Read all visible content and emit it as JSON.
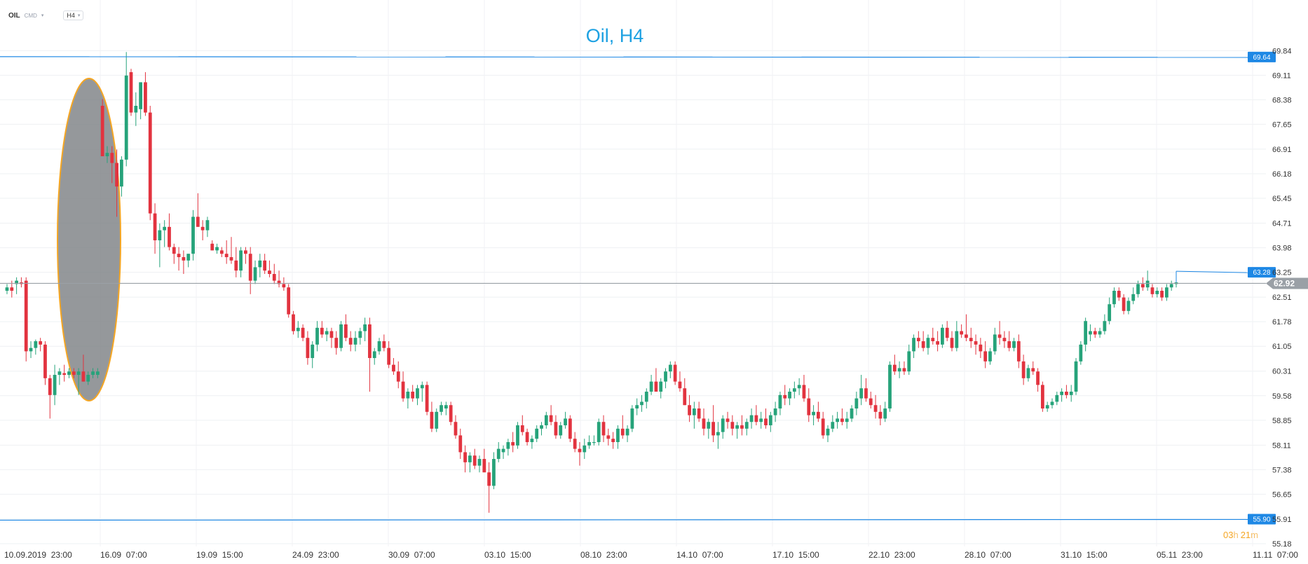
{
  "toolbar": {
    "symbol": "OIL",
    "symbol_type": "CMD",
    "timeframe": "H4",
    "caret": "▾"
  },
  "colors": {
    "bull": "#26a37a",
    "bear": "#e2333f",
    "hline": "#1e88e5",
    "current": "#9aa0a6",
    "ellipse_fill": "#7e8185",
    "ellipse_stroke": "#f5a623",
    "countdown": "#f5a623",
    "countdown_num": "#f5a623"
  },
  "chart_data": {
    "type": "candlestick",
    "title": "Oil, H4",
    "ylim": [
      55.18,
      70.2
    ],
    "y_ticks": [
      "69.84",
      "69.11",
      "68.38",
      "67.65",
      "66.91",
      "66.18",
      "65.45",
      "64.71",
      "63.98",
      "63.25",
      "62.51",
      "61.78",
      "61.05",
      "60.31",
      "59.58",
      "58.85",
      "58.11",
      "57.38",
      "56.65",
      "55.91",
      "55.18"
    ],
    "x_tick_labels": [
      "10.09.2019  23:00",
      "16.09  07:00",
      "19.09  15:00",
      "24.09  23:00",
      "30.09  07:00",
      "03.10  15:00",
      "08.10  23:00",
      "14.10  07:00",
      "17.10  15:00",
      "22.10  23:00",
      "28.10  07:00",
      "31.10  15:00",
      "05.11  23:00",
      "11.11  07:00"
    ],
    "ohlc": [
      [
        62.7,
        62.9,
        62.6,
        62.8
      ],
      [
        62.8,
        63.0,
        62.5,
        62.7
      ],
      [
        62.9,
        63.1,
        62.6,
        63.0
      ],
      [
        62.95,
        63.1,
        62.8,
        62.9
      ],
      [
        63.0,
        63.1,
        60.6,
        60.9
      ],
      [
        60.9,
        61.2,
        60.7,
        61.0
      ],
      [
        61.0,
        61.25,
        60.8,
        61.2
      ],
      [
        61.2,
        61.3,
        60.9,
        61.1
      ],
      [
        61.1,
        61.2,
        59.9,
        60.1
      ],
      [
        60.1,
        60.2,
        58.9,
        59.6
      ],
      [
        59.6,
        60.5,
        59.3,
        60.2
      ],
      [
        60.2,
        60.4,
        59.9,
        60.3
      ],
      [
        60.25,
        60.5,
        60.0,
        60.2
      ],
      [
        60.2,
        60.4,
        60.1,
        60.3
      ],
      [
        60.3,
        60.4,
        60.1,
        60.2
      ],
      [
        60.2,
        60.4,
        59.6,
        60.3
      ],
      [
        60.3,
        60.8,
        60.0,
        60.0
      ],
      [
        60.0,
        60.3,
        59.9,
        60.2
      ],
      [
        60.2,
        60.4,
        60.1,
        60.3
      ],
      [
        60.2,
        60.4,
        60.1,
        60.3
      ],
      [
        68.2,
        68.4,
        66.7,
        66.7
      ],
      [
        66.7,
        67.0,
        66.5,
        66.8
      ],
      [
        66.8,
        67.0,
        65.9,
        66.5
      ],
      [
        66.5,
        66.9,
        64.9,
        65.8
      ],
      [
        65.8,
        66.7,
        65.5,
        66.6
      ],
      [
        66.6,
        69.8,
        66.4,
        69.1
      ],
      [
        69.2,
        69.3,
        67.9,
        68.0
      ],
      [
        68.0,
        68.6,
        67.6,
        68.2
      ],
      [
        68.1,
        68.9,
        67.8,
        68.9
      ],
      [
        68.9,
        69.2,
        67.9,
        68.0
      ],
      [
        68.0,
        68.2,
        64.8,
        65.0
      ],
      [
        65.0,
        65.3,
        63.8,
        64.2
      ],
      [
        64.2,
        64.7,
        63.4,
        64.5
      ],
      [
        64.5,
        64.8,
        64.0,
        64.6
      ],
      [
        64.6,
        65.0,
        63.9,
        64.0
      ],
      [
        64.0,
        64.1,
        63.5,
        63.8
      ],
      [
        63.8,
        64.0,
        63.3,
        63.7
      ],
      [
        63.7,
        63.9,
        63.2,
        63.6
      ],
      [
        63.6,
        63.8,
        63.4,
        63.8
      ],
      [
        63.8,
        65.1,
        63.6,
        64.9
      ],
      [
        64.9,
        65.6,
        64.6,
        64.6
      ],
      [
        64.6,
        64.8,
        64.2,
        64.5
      ],
      [
        64.5,
        64.9,
        64.3,
        64.8
      ],
      [
        64.1,
        64.2,
        63.9,
        63.9
      ],
      [
        63.9,
        64.1,
        63.8,
        64.0
      ],
      [
        63.9,
        64.0,
        63.7,
        63.8
      ],
      [
        63.8,
        64.2,
        63.5,
        63.7
      ],
      [
        63.7,
        64.3,
        63.5,
        63.6
      ],
      [
        63.6,
        64.0,
        63.1,
        63.3
      ],
      [
        63.3,
        64.0,
        63.1,
        63.9
      ],
      [
        63.9,
        64.0,
        63.5,
        63.8
      ],
      [
        63.8,
        64.0,
        62.6,
        63.0
      ],
      [
        63.0,
        63.6,
        62.9,
        63.4
      ],
      [
        63.4,
        63.8,
        63.1,
        63.6
      ],
      [
        63.6,
        63.8,
        63.2,
        63.3
      ],
      [
        63.3,
        63.6,
        63.1,
        63.2
      ],
      [
        63.2,
        63.5,
        62.9,
        63.0
      ],
      [
        63.0,
        63.3,
        62.8,
        62.9
      ],
      [
        62.9,
        63.1,
        62.7,
        62.8
      ],
      [
        62.8,
        62.9,
        61.9,
        62.0
      ],
      [
        62.0,
        62.1,
        61.4,
        61.5
      ],
      [
        61.5,
        61.8,
        61.3,
        61.6
      ],
      [
        61.6,
        61.7,
        61.2,
        61.3
      ],
      [
        61.3,
        61.5,
        60.5,
        60.7
      ],
      [
        60.7,
        61.2,
        60.4,
        61.1
      ],
      [
        61.1,
        61.8,
        60.9,
        61.6
      ],
      [
        61.6,
        61.8,
        61.3,
        61.4
      ],
      [
        61.4,
        61.6,
        61.2,
        61.5
      ],
      [
        61.5,
        61.6,
        61.0,
        61.3
      ],
      [
        61.3,
        61.5,
        60.8,
        61.0
      ],
      [
        61.0,
        61.8,
        60.9,
        61.7
      ],
      [
        61.7,
        62.0,
        61.2,
        61.3
      ],
      [
        61.3,
        61.5,
        60.9,
        61.1
      ],
      [
        61.1,
        61.5,
        60.9,
        61.3
      ],
      [
        61.3,
        61.6,
        61.1,
        61.5
      ],
      [
        61.5,
        61.9,
        61.2,
        61.7
      ],
      [
        61.7,
        61.9,
        59.7,
        60.7
      ],
      [
        60.7,
        61.0,
        60.5,
        60.9
      ],
      [
        60.9,
        61.3,
        60.8,
        61.2
      ],
      [
        61.2,
        61.4,
        60.9,
        61.0
      ],
      [
        61.0,
        61.2,
        60.4,
        60.5
      ],
      [
        60.5,
        60.7,
        60.2,
        60.3
      ],
      [
        60.3,
        60.6,
        59.8,
        60.0
      ],
      [
        60.0,
        60.3,
        59.4,
        59.5
      ],
      [
        59.5,
        59.8,
        59.2,
        59.7
      ],
      [
        59.7,
        59.9,
        59.4,
        59.5
      ],
      [
        59.5,
        59.9,
        59.3,
        59.8
      ],
      [
        59.8,
        60.0,
        59.4,
        59.9
      ],
      [
        59.9,
        60.0,
        59.0,
        59.1
      ],
      [
        59.1,
        59.4,
        58.5,
        58.6
      ],
      [
        58.6,
        59.2,
        58.5,
        59.1
      ],
      [
        59.1,
        59.4,
        59.0,
        59.3
      ],
      [
        59.2,
        59.4,
        59.0,
        59.3
      ],
      [
        59.3,
        59.4,
        58.7,
        58.8
      ],
      [
        58.8,
        59.0,
        58.3,
        58.4
      ],
      [
        58.4,
        58.6,
        57.7,
        57.9
      ],
      [
        57.9,
        58.1,
        57.3,
        57.6
      ],
      [
        57.6,
        57.9,
        57.3,
        57.8
      ],
      [
        57.8,
        58.0,
        57.4,
        57.5
      ],
      [
        57.5,
        57.8,
        57.3,
        57.7
      ],
      [
        57.7,
        58.0,
        57.4,
        57.3
      ],
      [
        57.3,
        57.6,
        56.1,
        56.9
      ],
      [
        56.9,
        57.9,
        56.8,
        57.7
      ],
      [
        57.7,
        58.2,
        57.6,
        58.0
      ],
      [
        57.9,
        58.1,
        57.7,
        58.0
      ],
      [
        58.0,
        58.3,
        57.8,
        58.2
      ],
      [
        58.2,
        58.5,
        57.9,
        58.1
      ],
      [
        58.1,
        58.8,
        58.0,
        58.7
      ],
      [
        58.7,
        59.0,
        58.4,
        58.5
      ],
      [
        58.5,
        58.6,
        58.1,
        58.2
      ],
      [
        58.2,
        58.4,
        58.0,
        58.3
      ],
      [
        58.3,
        58.7,
        58.2,
        58.6
      ],
      [
        58.6,
        58.8,
        58.4,
        58.7
      ],
      [
        58.7,
        59.1,
        58.6,
        59.0
      ],
      [
        59.0,
        59.3,
        58.7,
        58.8
      ],
      [
        58.8,
        59.0,
        58.3,
        58.4
      ],
      [
        58.4,
        58.8,
        58.3,
        58.7
      ],
      [
        58.7,
        59.1,
        58.6,
        58.9
      ],
      [
        58.9,
        59.0,
        58.2,
        58.3
      ],
      [
        58.3,
        58.5,
        57.9,
        58.0
      ],
      [
        58.0,
        58.2,
        57.5,
        57.9
      ],
      [
        57.9,
        58.3,
        57.7,
        58.1
      ],
      [
        58.1,
        58.4,
        58.0,
        58.2
      ],
      [
        58.2,
        58.4,
        58.1,
        58.2
      ],
      [
        58.2,
        58.9,
        58.1,
        58.8
      ],
      [
        58.8,
        59.0,
        58.2,
        58.4
      ],
      [
        58.4,
        58.6,
        58.1,
        58.3
      ],
      [
        58.3,
        58.5,
        58.0,
        58.2
      ],
      [
        58.2,
        58.7,
        58.0,
        58.6
      ],
      [
        58.6,
        59.0,
        58.3,
        58.4
      ],
      [
        58.4,
        58.7,
        58.2,
        58.6
      ],
      [
        58.6,
        59.3,
        58.5,
        59.2
      ],
      [
        59.2,
        59.5,
        59.0,
        59.3
      ],
      [
        59.3,
        59.6,
        59.1,
        59.4
      ],
      [
        59.4,
        59.8,
        59.2,
        59.7
      ],
      [
        59.7,
        60.2,
        59.6,
        60.0
      ],
      [
        60.0,
        60.4,
        59.8,
        59.7
      ],
      [
        59.7,
        60.1,
        59.5,
        60.0
      ],
      [
        60.0,
        60.4,
        59.8,
        60.3
      ],
      [
        60.3,
        60.6,
        60.1,
        60.5
      ],
      [
        60.5,
        60.6,
        59.9,
        60.0
      ],
      [
        60.0,
        60.3,
        59.7,
        59.8
      ],
      [
        59.8,
        60.1,
        59.3,
        59.3
      ],
      [
        59.3,
        59.6,
        58.8,
        59.0
      ],
      [
        59.0,
        59.4,
        58.6,
        59.2
      ],
      [
        59.2,
        59.4,
        58.8,
        58.9
      ],
      [
        58.9,
        59.2,
        58.4,
        58.6
      ],
      [
        58.6,
        58.9,
        58.3,
        58.8
      ],
      [
        58.8,
        59.3,
        58.2,
        58.4
      ],
      [
        58.4,
        58.8,
        58.0,
        58.5
      ],
      [
        58.5,
        59.0,
        58.3,
        58.9
      ],
      [
        58.9,
        59.1,
        58.6,
        58.8
      ],
      [
        58.8,
        59.0,
        58.4,
        58.6
      ],
      [
        58.6,
        58.8,
        58.3,
        58.7
      ],
      [
        58.7,
        59.0,
        58.4,
        58.6
      ],
      [
        58.6,
        58.9,
        58.4,
        58.8
      ],
      [
        58.8,
        59.2,
        58.6,
        59.0
      ],
      [
        59.0,
        59.3,
        58.7,
        58.8
      ],
      [
        58.8,
        59.1,
        58.6,
        58.9
      ],
      [
        58.9,
        59.2,
        58.6,
        58.7
      ],
      [
        58.7,
        59.1,
        58.5,
        59.0
      ],
      [
        59.0,
        59.4,
        58.8,
        59.2
      ],
      [
        59.2,
        59.7,
        59.0,
        59.6
      ],
      [
        59.6,
        59.9,
        59.3,
        59.5
      ],
      [
        59.5,
        59.8,
        59.3,
        59.7
      ],
      [
        59.7,
        60.0,
        59.5,
        59.8
      ],
      [
        59.8,
        60.1,
        59.6,
        59.9
      ],
      [
        59.9,
        60.2,
        59.4,
        59.5
      ],
      [
        59.5,
        59.8,
        58.8,
        59.0
      ],
      [
        59.0,
        59.3,
        58.7,
        59.1
      ],
      [
        59.1,
        59.4,
        58.8,
        58.9
      ],
      [
        58.9,
        59.1,
        58.3,
        58.4
      ],
      [
        58.4,
        58.7,
        58.2,
        58.6
      ],
      [
        58.6,
        59.0,
        58.5,
        58.8
      ],
      [
        58.8,
        59.1,
        58.6,
        58.9
      ],
      [
        58.9,
        59.2,
        58.7,
        58.8
      ],
      [
        58.8,
        59.1,
        58.6,
        58.9
      ],
      [
        58.9,
        59.3,
        58.8,
        59.2
      ],
      [
        59.2,
        59.7,
        59.0,
        59.5
      ],
      [
        59.5,
        60.2,
        59.3,
        59.8
      ],
      [
        59.8,
        60.1,
        59.4,
        59.5
      ],
      [
        59.5,
        59.7,
        59.2,
        59.3
      ],
      [
        59.3,
        59.6,
        58.9,
        59.1
      ],
      [
        59.1,
        59.3,
        58.7,
        58.9
      ],
      [
        58.9,
        59.4,
        58.8,
        59.2
      ],
      [
        59.2,
        60.6,
        59.1,
        60.5
      ],
      [
        60.5,
        60.8,
        60.2,
        60.3
      ],
      [
        60.3,
        60.6,
        60.1,
        60.4
      ],
      [
        60.4,
        60.6,
        60.2,
        60.3
      ],
      [
        60.3,
        61.1,
        60.2,
        60.9
      ],
      [
        60.9,
        61.4,
        60.7,
        61.3
      ],
      [
        61.3,
        61.5,
        61.0,
        61.2
      ],
      [
        61.2,
        61.5,
        60.9,
        61.0
      ],
      [
        61.0,
        61.4,
        60.8,
        61.3
      ],
      [
        61.3,
        61.6,
        61.1,
        61.2
      ],
      [
        61.2,
        61.5,
        60.9,
        61.1
      ],
      [
        61.1,
        61.7,
        61.0,
        61.6
      ],
      [
        61.6,
        61.8,
        61.2,
        61.3
      ],
      [
        61.3,
        61.5,
        60.9,
        61.0
      ],
      [
        61.0,
        61.8,
        60.9,
        61.5
      ],
      [
        61.5,
        61.7,
        61.3,
        61.4
      ],
      [
        61.4,
        62.0,
        61.2,
        61.3
      ],
      [
        61.3,
        61.6,
        61.0,
        61.2
      ],
      [
        61.2,
        61.4,
        60.8,
        61.1
      ],
      [
        61.1,
        61.3,
        60.7,
        60.9
      ],
      [
        60.9,
        61.2,
        60.4,
        60.6
      ],
      [
        60.6,
        61.0,
        60.5,
        60.9
      ],
      [
        60.9,
        61.6,
        60.8,
        61.4
      ],
      [
        61.4,
        61.8,
        61.1,
        61.3
      ],
      [
        61.3,
        61.5,
        61.0,
        61.2
      ],
      [
        61.2,
        61.5,
        60.9,
        61.0
      ],
      [
        61.0,
        61.3,
        60.9,
        61.2
      ],
      [
        61.2,
        61.4,
        60.4,
        60.6
      ],
      [
        60.6,
        60.8,
        59.9,
        60.1
      ],
      [
        60.1,
        60.5,
        60.0,
        60.4
      ],
      [
        60.4,
        60.6,
        60.2,
        60.3
      ],
      [
        60.3,
        60.4,
        59.7,
        59.9
      ],
      [
        59.9,
        60.0,
        59.1,
        59.2
      ],
      [
        59.2,
        59.4,
        59.1,
        59.3
      ],
      [
        59.3,
        59.5,
        59.2,
        59.4
      ],
      [
        59.4,
        59.7,
        59.3,
        59.6
      ],
      [
        59.6,
        59.8,
        59.4,
        59.7
      ],
      [
        59.7,
        59.9,
        59.5,
        59.6
      ],
      [
        59.6,
        59.9,
        59.4,
        59.7
      ],
      [
        59.7,
        60.7,
        59.6,
        60.6
      ],
      [
        60.6,
        61.2,
        60.5,
        61.1
      ],
      [
        61.1,
        61.9,
        60.9,
        61.8
      ],
      [
        61.4,
        61.7,
        61.2,
        61.5
      ],
      [
        61.5,
        61.6,
        61.3,
        61.4
      ],
      [
        61.4,
        61.6,
        61.3,
        61.5
      ],
      [
        61.5,
        62.0,
        61.4,
        61.8
      ],
      [
        61.8,
        62.5,
        61.7,
        62.3
      ],
      [
        62.3,
        62.8,
        62.2,
        62.7
      ],
      [
        62.7,
        62.8,
        62.4,
        62.5
      ],
      [
        62.5,
        62.6,
        62.0,
        62.1
      ],
      [
        62.1,
        62.5,
        62.0,
        62.4
      ],
      [
        62.4,
        62.8,
        62.3,
        62.6
      ],
      [
        62.6,
        63.0,
        62.5,
        62.9
      ],
      [
        62.9,
        63.1,
        62.7,
        62.8
      ],
      [
        62.8,
        63.3,
        62.7,
        63.0
      ],
      [
        62.8,
        62.9,
        62.5,
        62.6
      ],
      [
        62.6,
        62.8,
        62.5,
        62.7
      ],
      [
        62.7,
        62.8,
        62.4,
        62.5
      ],
      [
        62.5,
        62.9,
        62.4,
        62.8
      ],
      [
        62.8,
        63.0,
        62.7,
        62.9
      ],
      [
        62.9,
        63.1,
        62.8,
        62.95
      ]
    ],
    "hlines": [
      {
        "label": "69.64"
      },
      {
        "label": "55.90"
      }
    ],
    "series_end_label": "63.28",
    "current_price": "62.92",
    "annotation": "ellipse",
    "grid": true,
    "countdown": {
      "h_num": "03",
      "h_unit": "h",
      "m_num": "21",
      "m_unit": "m"
    }
  }
}
